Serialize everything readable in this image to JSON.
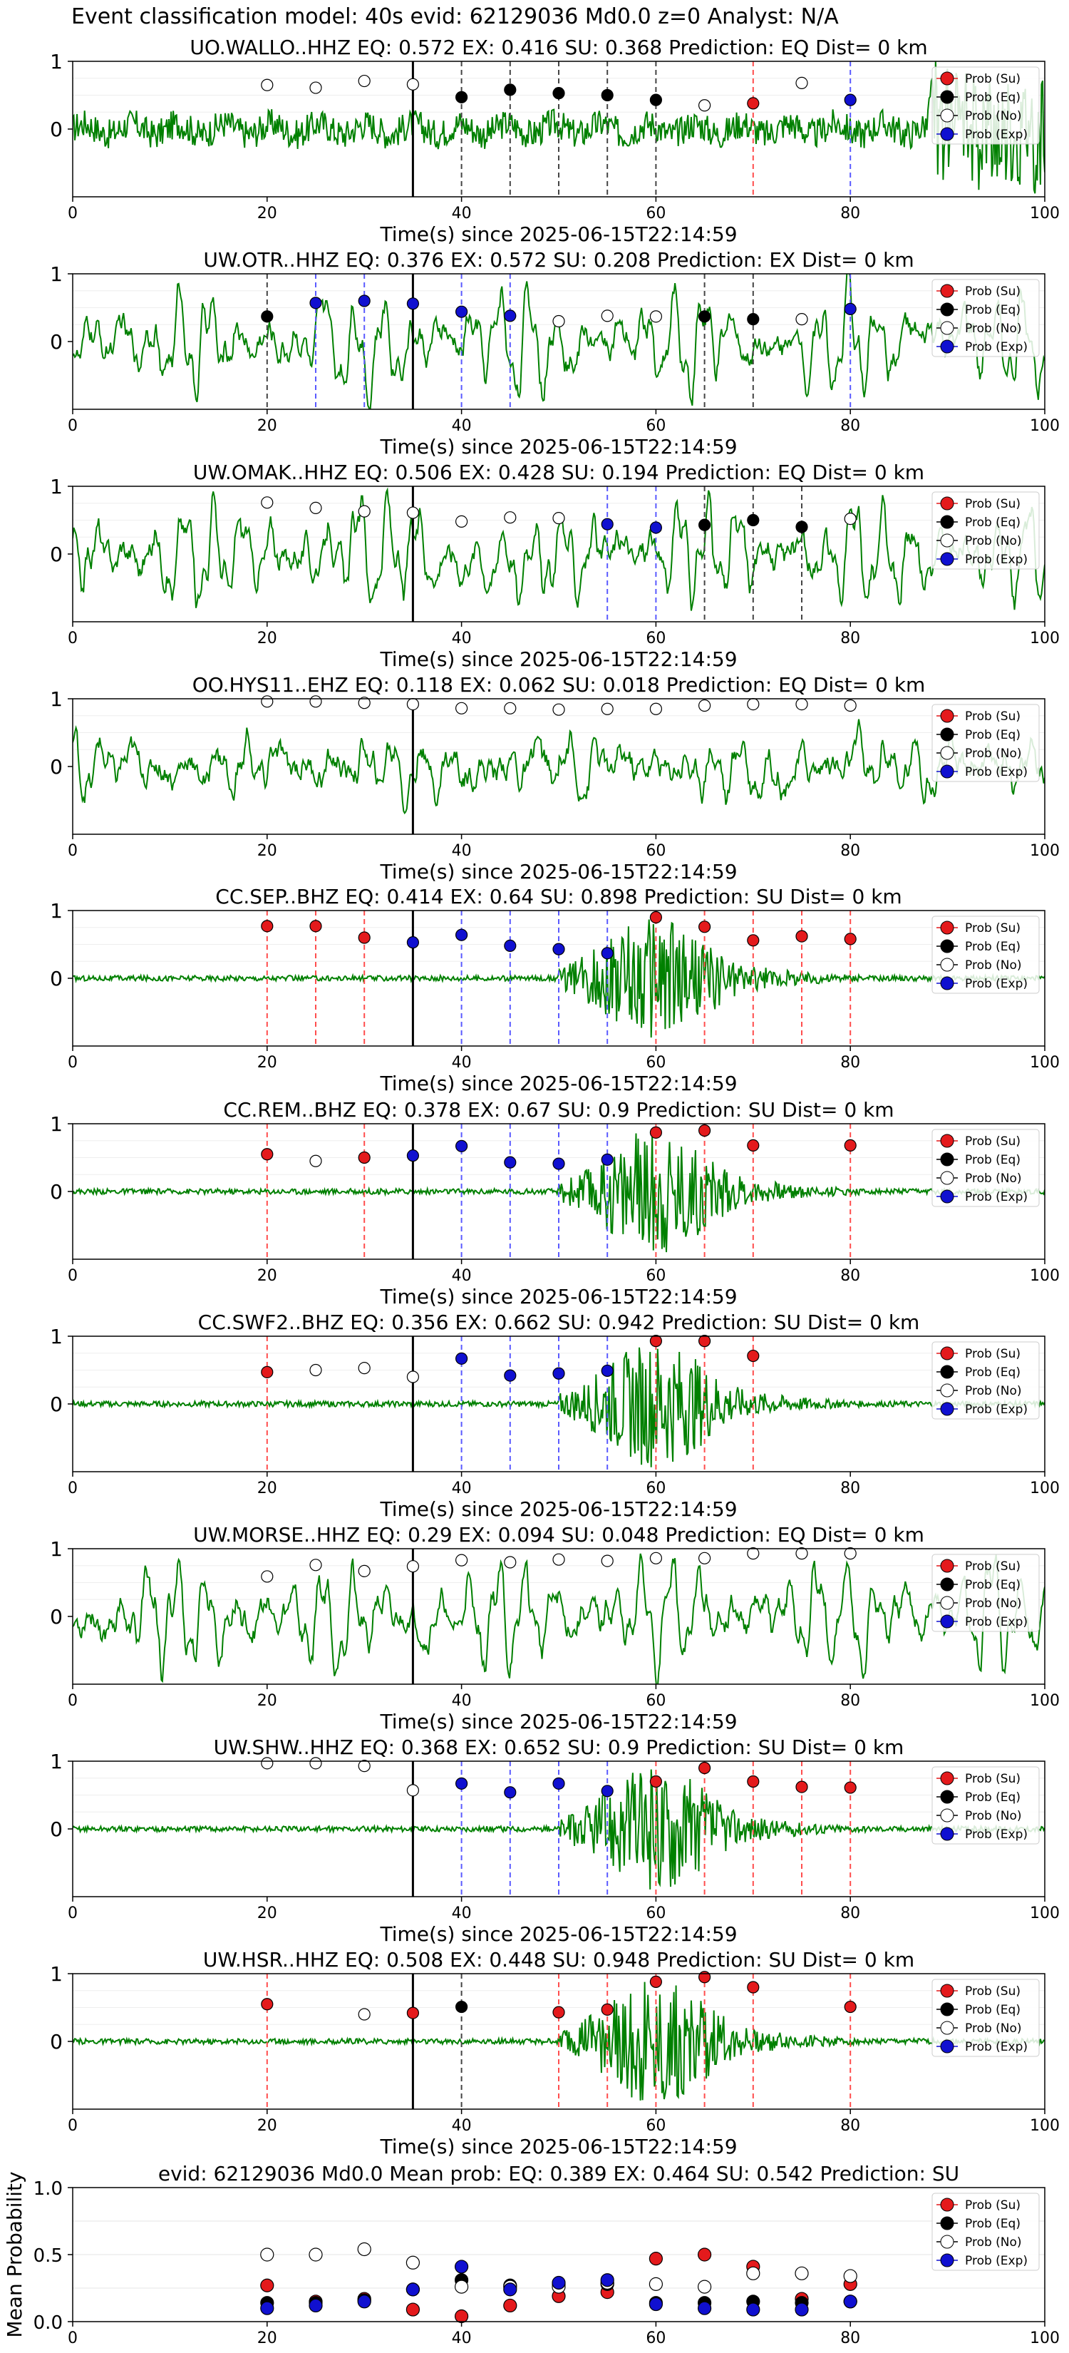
{
  "page_title": "Event classification model: 40s evid: 62129036 Md0.0 z=0 Analyst: N/A",
  "legend_labels": [
    "Prob (Su)",
    "Prob (Eq)",
    "Prob (No)",
    "Prob (Exp)"
  ],
  "colors": {
    "su": "#e41a1c",
    "eq": "#000000",
    "no": "#ffffff",
    "exp": "#1010d0",
    "waveform": "#008000",
    "su_line": "#ff4d4d",
    "eq_line": "#444444",
    "exp_line": "#5a5aff"
  },
  "chart_data": [
    {
      "type": "line",
      "title": "UO.WALLO..HHZ   EQ: 0.572  EX: 0.416  SU: 0.368   Prediction: EQ    Dist= 0 km",
      "xlabel": "Time(s) since 2025-06-15T22:14:59",
      "ylabel": "",
      "xlim": [
        0,
        100
      ],
      "ylim": [
        -1,
        1
      ],
      "xticks": [
        0,
        20,
        40,
        60,
        80,
        100
      ],
      "yticks": [
        1,
        0
      ],
      "reference_line_x": 35,
      "waveform": {
        "style": "noisy",
        "amp": 0.22
      },
      "points": [
        {
          "x": 20,
          "y": 0.65,
          "c": "no"
        },
        {
          "x": 25,
          "y": 0.61,
          "c": "no"
        },
        {
          "x": 30,
          "y": 0.71,
          "c": "no"
        },
        {
          "x": 35,
          "y": 0.66,
          "c": "no"
        },
        {
          "x": 40,
          "y": 0.47,
          "c": "eq"
        },
        {
          "x": 45,
          "y": 0.58,
          "c": "eq"
        },
        {
          "x": 50,
          "y": 0.53,
          "c": "eq"
        },
        {
          "x": 55,
          "y": 0.5,
          "c": "eq"
        },
        {
          "x": 60,
          "y": 0.43,
          "c": "eq"
        },
        {
          "x": 65,
          "y": 0.35,
          "c": "no"
        },
        {
          "x": 70,
          "y": 0.38,
          "c": "su"
        },
        {
          "x": 75,
          "y": 0.68,
          "c": "no"
        },
        {
          "x": 80,
          "y": 0.43,
          "c": "exp"
        }
      ]
    },
    {
      "type": "line",
      "title": "UW.OTR..HHZ   EQ: 0.376  EX: 0.572  SU: 0.208   Prediction: EX    Dist= 0 km",
      "xlabel": "Time(s) since 2025-06-15T22:14:59",
      "ylabel": "",
      "xlim": [
        0,
        100
      ],
      "ylim": [
        -1,
        1
      ],
      "xticks": [
        0,
        20,
        40,
        60,
        80,
        100
      ],
      "yticks": [
        1,
        0
      ],
      "reference_line_x": 35,
      "waveform": {
        "style": "oscillating",
        "amp": 0.75
      },
      "points": [
        {
          "x": 20,
          "y": 0.37,
          "c": "eq"
        },
        {
          "x": 25,
          "y": 0.57,
          "c": "exp"
        },
        {
          "x": 30,
          "y": 0.6,
          "c": "exp"
        },
        {
          "x": 35,
          "y": 0.56,
          "c": "exp"
        },
        {
          "x": 40,
          "y": 0.44,
          "c": "exp"
        },
        {
          "x": 45,
          "y": 0.38,
          "c": "exp"
        },
        {
          "x": 50,
          "y": 0.3,
          "c": "no"
        },
        {
          "x": 55,
          "y": 0.38,
          "c": "no"
        },
        {
          "x": 60,
          "y": 0.37,
          "c": "no"
        },
        {
          "x": 65,
          "y": 0.37,
          "c": "eq"
        },
        {
          "x": 70,
          "y": 0.33,
          "c": "eq"
        },
        {
          "x": 75,
          "y": 0.33,
          "c": "no"
        },
        {
          "x": 80,
          "y": 0.48,
          "c": "exp"
        }
      ]
    },
    {
      "type": "line",
      "title": "UW.OMAK..HHZ   EQ: 0.506  EX: 0.428  SU: 0.194   Prediction: EQ    Dist= 0 km",
      "xlabel": "Time(s) since 2025-06-15T22:14:59",
      "ylabel": "",
      "xlim": [
        0,
        100
      ],
      "ylim": [
        -1,
        1
      ],
      "xticks": [
        0,
        20,
        40,
        60,
        80,
        100
      ],
      "yticks": [
        1,
        0
      ],
      "reference_line_x": 35,
      "waveform": {
        "style": "oscillating",
        "amp": 0.8
      },
      "points": [
        {
          "x": 20,
          "y": 0.76,
          "c": "no"
        },
        {
          "x": 25,
          "y": 0.68,
          "c": "no"
        },
        {
          "x": 30,
          "y": 0.63,
          "c": "no"
        },
        {
          "x": 35,
          "y": 0.61,
          "c": "no"
        },
        {
          "x": 40,
          "y": 0.48,
          "c": "no"
        },
        {
          "x": 45,
          "y": 0.54,
          "c": "no"
        },
        {
          "x": 50,
          "y": 0.53,
          "c": "no"
        },
        {
          "x": 55,
          "y": 0.44,
          "c": "exp"
        },
        {
          "x": 60,
          "y": 0.39,
          "c": "exp"
        },
        {
          "x": 65,
          "y": 0.43,
          "c": "eq"
        },
        {
          "x": 70,
          "y": 0.5,
          "c": "eq"
        },
        {
          "x": 75,
          "y": 0.4,
          "c": "eq"
        },
        {
          "x": 80,
          "y": 0.52,
          "c": "no"
        }
      ]
    },
    {
      "type": "line",
      "title": "OO.HYS11..EHZ   EQ: 0.118  EX: 0.062  SU: 0.018   Prediction: EQ    Dist= 0 km",
      "xlabel": "Time(s) since 2025-06-15T22:14:59",
      "ylabel": "",
      "xlim": [
        0,
        100
      ],
      "ylim": [
        -1,
        1
      ],
      "xticks": [
        0,
        20,
        40,
        60,
        80,
        100
      ],
      "yticks": [
        1,
        0
      ],
      "reference_line_x": 35,
      "waveform": {
        "style": "oscillating",
        "amp": 0.45
      },
      "points": [
        {
          "x": 20,
          "y": 0.96,
          "c": "no"
        },
        {
          "x": 25,
          "y": 0.96,
          "c": "no"
        },
        {
          "x": 30,
          "y": 0.94,
          "c": "no"
        },
        {
          "x": 35,
          "y": 0.92,
          "c": "no"
        },
        {
          "x": 40,
          "y": 0.86,
          "c": "no"
        },
        {
          "x": 45,
          "y": 0.86,
          "c": "no"
        },
        {
          "x": 50,
          "y": 0.84,
          "c": "no"
        },
        {
          "x": 55,
          "y": 0.85,
          "c": "no"
        },
        {
          "x": 60,
          "y": 0.85,
          "c": "no"
        },
        {
          "x": 65,
          "y": 0.9,
          "c": "no"
        },
        {
          "x": 70,
          "y": 0.92,
          "c": "no"
        },
        {
          "x": 75,
          "y": 0.92,
          "c": "no"
        },
        {
          "x": 80,
          "y": 0.9,
          "c": "no"
        }
      ]
    },
    {
      "type": "line",
      "title": "CC.SEP..BHZ   EQ: 0.414  EX: 0.64  SU: 0.898   Prediction: SU    Dist= 0 km",
      "xlabel": "Time(s) since 2025-06-15T22:14:59",
      "ylabel": "",
      "xlim": [
        0,
        100
      ],
      "ylim": [
        -1,
        1
      ],
      "xticks": [
        0,
        20,
        40,
        60,
        80,
        100
      ],
      "yticks": [
        1,
        0
      ],
      "reference_line_x": 35,
      "waveform": {
        "style": "event",
        "amp": 0.9
      },
      "points": [
        {
          "x": 20,
          "y": 0.77,
          "c": "su"
        },
        {
          "x": 25,
          "y": 0.77,
          "c": "su"
        },
        {
          "x": 30,
          "y": 0.6,
          "c": "su"
        },
        {
          "x": 35,
          "y": 0.53,
          "c": "exp"
        },
        {
          "x": 40,
          "y": 0.64,
          "c": "exp"
        },
        {
          "x": 45,
          "y": 0.48,
          "c": "exp"
        },
        {
          "x": 50,
          "y": 0.43,
          "c": "exp"
        },
        {
          "x": 55,
          "y": 0.37,
          "c": "exp"
        },
        {
          "x": 60,
          "y": 0.9,
          "c": "su"
        },
        {
          "x": 65,
          "y": 0.76,
          "c": "su"
        },
        {
          "x": 70,
          "y": 0.56,
          "c": "su"
        },
        {
          "x": 75,
          "y": 0.62,
          "c": "su"
        },
        {
          "x": 80,
          "y": 0.58,
          "c": "su"
        }
      ]
    },
    {
      "type": "line",
      "title": "CC.REM..BHZ   EQ: 0.378  EX: 0.67  SU: 0.9   Prediction: SU    Dist= 0 km",
      "xlabel": "Time(s) since 2025-06-15T22:14:59",
      "ylabel": "",
      "xlim": [
        0,
        100
      ],
      "ylim": [
        -1,
        1
      ],
      "xticks": [
        0,
        20,
        40,
        60,
        80,
        100
      ],
      "yticks": [
        1,
        0
      ],
      "reference_line_x": 35,
      "waveform": {
        "style": "event",
        "amp": 0.9
      },
      "points": [
        {
          "x": 20,
          "y": 0.55,
          "c": "su"
        },
        {
          "x": 25,
          "y": 0.45,
          "c": "no"
        },
        {
          "x": 30,
          "y": 0.5,
          "c": "su"
        },
        {
          "x": 35,
          "y": 0.53,
          "c": "exp"
        },
        {
          "x": 40,
          "y": 0.67,
          "c": "exp"
        },
        {
          "x": 45,
          "y": 0.43,
          "c": "exp"
        },
        {
          "x": 50,
          "y": 0.41,
          "c": "exp"
        },
        {
          "x": 55,
          "y": 0.47,
          "c": "exp"
        },
        {
          "x": 60,
          "y": 0.87,
          "c": "su"
        },
        {
          "x": 65,
          "y": 0.9,
          "c": "su"
        },
        {
          "x": 70,
          "y": 0.68,
          "c": "su"
        },
        {
          "x": 80,
          "y": 0.68,
          "c": "su"
        }
      ]
    },
    {
      "type": "line",
      "title": "CC.SWF2..BHZ   EQ: 0.356  EX: 0.662  SU: 0.942   Prediction: SU    Dist= 0 km",
      "xlabel": "Time(s) since 2025-06-15T22:14:59",
      "ylabel": "",
      "xlim": [
        0,
        100
      ],
      "ylim": [
        -1,
        1
      ],
      "xticks": [
        0,
        20,
        40,
        60,
        80,
        100
      ],
      "yticks": [
        1,
        0
      ],
      "reference_line_x": 35,
      "waveform": {
        "style": "event",
        "amp": 0.9
      },
      "points": [
        {
          "x": 20,
          "y": 0.47,
          "c": "su"
        },
        {
          "x": 25,
          "y": 0.5,
          "c": "no"
        },
        {
          "x": 30,
          "y": 0.53,
          "c": "no"
        },
        {
          "x": 35,
          "y": 0.4,
          "c": "no"
        },
        {
          "x": 40,
          "y": 0.67,
          "c": "exp"
        },
        {
          "x": 45,
          "y": 0.42,
          "c": "exp"
        },
        {
          "x": 50,
          "y": 0.45,
          "c": "exp"
        },
        {
          "x": 55,
          "y": 0.49,
          "c": "exp"
        },
        {
          "x": 60,
          "y": 0.93,
          "c": "su"
        },
        {
          "x": 65,
          "y": 0.93,
          "c": "su"
        },
        {
          "x": 70,
          "y": 0.71,
          "c": "su"
        }
      ]
    },
    {
      "type": "line",
      "title": "UW.MORSE..HHZ   EQ: 0.29  EX: 0.094  SU: 0.048   Prediction: EQ    Dist= 0 km",
      "xlabel": "Time(s) since 2025-06-15T22:14:59",
      "ylabel": "",
      "xlim": [
        0,
        100
      ],
      "ylim": [
        -1,
        1
      ],
      "xticks": [
        0,
        20,
        40,
        60,
        80,
        100
      ],
      "yticks": [
        1,
        0
      ],
      "reference_line_x": 35,
      "waveform": {
        "style": "oscillating",
        "amp": 0.8
      },
      "points": [
        {
          "x": 20,
          "y": 0.59,
          "c": "no"
        },
        {
          "x": 25,
          "y": 0.76,
          "c": "no"
        },
        {
          "x": 30,
          "y": 0.67,
          "c": "no"
        },
        {
          "x": 35,
          "y": 0.74,
          "c": "no"
        },
        {
          "x": 40,
          "y": 0.83,
          "c": "no"
        },
        {
          "x": 45,
          "y": 0.8,
          "c": "no"
        },
        {
          "x": 50,
          "y": 0.84,
          "c": "no"
        },
        {
          "x": 55,
          "y": 0.82,
          "c": "no"
        },
        {
          "x": 60,
          "y": 0.86,
          "c": "no"
        },
        {
          "x": 65,
          "y": 0.86,
          "c": "no"
        },
        {
          "x": 70,
          "y": 0.93,
          "c": "no"
        },
        {
          "x": 75,
          "y": 0.93,
          "c": "no"
        },
        {
          "x": 80,
          "y": 0.93,
          "c": "no"
        }
      ]
    },
    {
      "type": "line",
      "title": "UW.SHW..HHZ   EQ: 0.368  EX: 0.652  SU: 0.9   Prediction: SU    Dist= 0 km",
      "xlabel": "Time(s) since 2025-06-15T22:14:59",
      "ylabel": "",
      "xlim": [
        0,
        100
      ],
      "ylim": [
        -1,
        1
      ],
      "xticks": [
        0,
        20,
        40,
        60,
        80,
        100
      ],
      "yticks": [
        1,
        0
      ],
      "reference_line_x": 35,
      "waveform": {
        "style": "event",
        "amp": 0.9
      },
      "points": [
        {
          "x": 20,
          "y": 0.97,
          "c": "no"
        },
        {
          "x": 25,
          "y": 0.97,
          "c": "no"
        },
        {
          "x": 30,
          "y": 0.93,
          "c": "no"
        },
        {
          "x": 35,
          "y": 0.57,
          "c": "no"
        },
        {
          "x": 40,
          "y": 0.67,
          "c": "exp"
        },
        {
          "x": 45,
          "y": 0.54,
          "c": "exp"
        },
        {
          "x": 50,
          "y": 0.67,
          "c": "exp"
        },
        {
          "x": 55,
          "y": 0.56,
          "c": "exp"
        },
        {
          "x": 60,
          "y": 0.7,
          "c": "su"
        },
        {
          "x": 65,
          "y": 0.9,
          "c": "su"
        },
        {
          "x": 70,
          "y": 0.7,
          "c": "su"
        },
        {
          "x": 75,
          "y": 0.62,
          "c": "su"
        },
        {
          "x": 80,
          "y": 0.61,
          "c": "su"
        }
      ]
    },
    {
      "type": "line",
      "title": "UW.HSR..HHZ   EQ: 0.508  EX: 0.448  SU: 0.948   Prediction: SU    Dist= 0 km",
      "xlabel": "Time(s) since 2025-06-15T22:14:59",
      "ylabel": "",
      "xlim": [
        0,
        100
      ],
      "ylim": [
        -1,
        1
      ],
      "xticks": [
        0,
        20,
        40,
        60,
        80,
        100
      ],
      "yticks": [
        1,
        0
      ],
      "reference_line_x": 35,
      "waveform": {
        "style": "event",
        "amp": 0.9
      },
      "points": [
        {
          "x": 20,
          "y": 0.55,
          "c": "su"
        },
        {
          "x": 30,
          "y": 0.4,
          "c": "no"
        },
        {
          "x": 35,
          "y": 0.42,
          "c": "su"
        },
        {
          "x": 40,
          "y": 0.51,
          "c": "eq"
        },
        {
          "x": 50,
          "y": 0.43,
          "c": "su"
        },
        {
          "x": 55,
          "y": 0.47,
          "c": "su"
        },
        {
          "x": 60,
          "y": 0.88,
          "c": "su"
        },
        {
          "x": 65,
          "y": 0.95,
          "c": "su"
        },
        {
          "x": 70,
          "y": 0.8,
          "c": "su"
        },
        {
          "x": 80,
          "y": 0.51,
          "c": "su"
        }
      ]
    },
    {
      "type": "scatter",
      "title": "evid: 62129036  Md0.0   Mean prob:   EQ: 0.389  EX: 0.464  SU: 0.542   Prediction: SU",
      "xlabel": "",
      "ylabel": "Mean Probability",
      "xlim": [
        0,
        100
      ],
      "ylim": [
        0,
        1
      ],
      "xticks": [
        0,
        20,
        40,
        60,
        80,
        100
      ],
      "yticks": [
        1.0,
        0.5,
        0.0
      ],
      "x": [
        20,
        25,
        30,
        35,
        40,
        45,
        50,
        55,
        60,
        65,
        70,
        75,
        80
      ],
      "series": [
        {
          "name": "Prob (Su)",
          "c": "su",
          "values": [
            0.27,
            0.15,
            0.17,
            0.09,
            0.04,
            0.12,
            0.19,
            0.22,
            0.47,
            0.5,
            0.41,
            0.17,
            0.28
          ]
        },
        {
          "name": "Prob (Eq)",
          "c": "eq",
          "values": [
            0.14,
            0.14,
            0.16,
            0.24,
            0.31,
            0.27,
            0.28,
            0.28,
            0.14,
            0.14,
            0.15,
            0.14,
            0.15
          ]
        },
        {
          "name": "Prob (No)",
          "c": "no",
          "values": [
            0.5,
            0.5,
            0.54,
            0.44,
            0.26,
            0.26,
            0.26,
            0.29,
            0.28,
            0.26,
            0.36,
            0.36,
            0.34
          ]
        },
        {
          "name": "Prob (Exp)",
          "c": "exp",
          "values": [
            0.1,
            0.12,
            0.15,
            0.24,
            0.41,
            0.24,
            0.29,
            0.31,
            0.13,
            0.1,
            0.09,
            0.09,
            0.15
          ]
        }
      ]
    }
  ]
}
